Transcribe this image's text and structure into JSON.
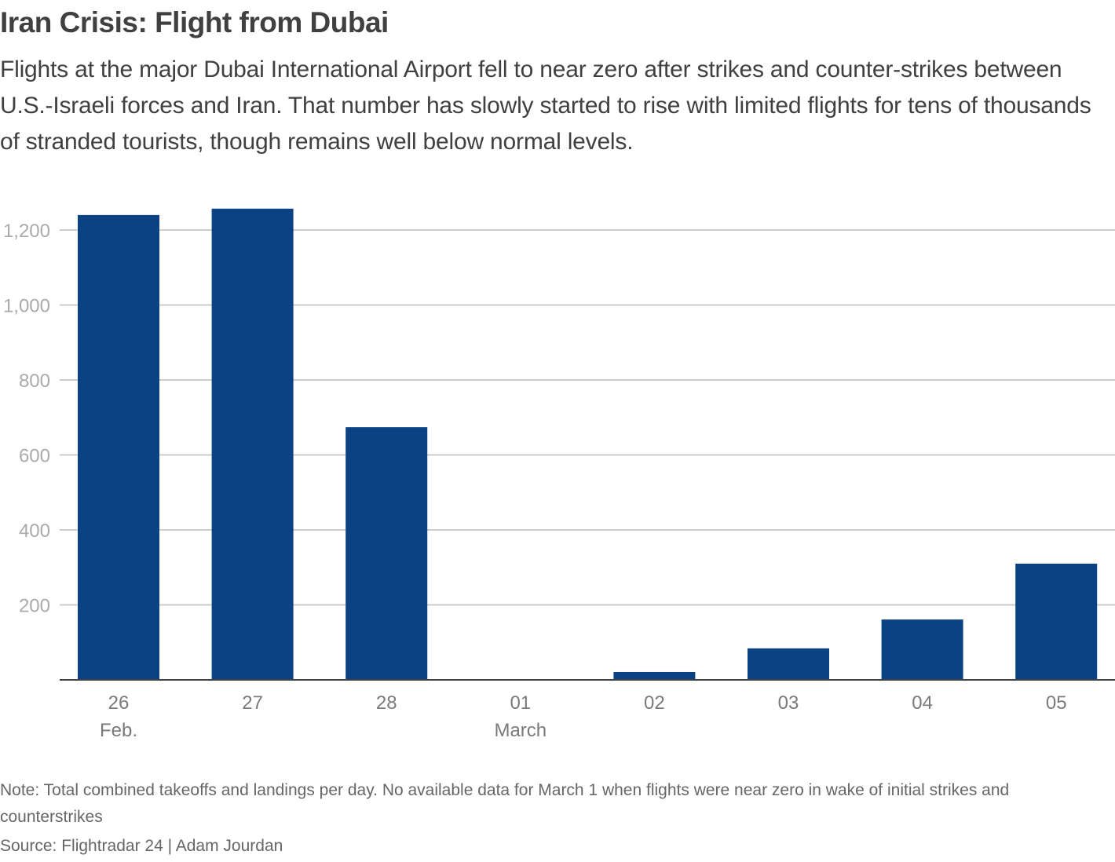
{
  "header": {
    "title": "Iran Crisis: Flight from Dubai",
    "subtitle": "Flights at the major Dubai International Airport fell to near zero after strikes and counter-strikes between U.S.-Israeli forces and Iran. That number has slowly started to rise with limited flights for tens of thousands of stranded tourists, though remains well below normal levels."
  },
  "footer": {
    "note": "Note: Total combined takeoffs and landings per day. No available data for March 1 when flights were near zero in wake of initial strikes and counterstrikes",
    "source": "Source: Flightradar 24 | Adam Jourdan"
  },
  "colors": {
    "bar": "#0b4284",
    "grid": "#cccccc",
    "axis": "#404040",
    "ytick": "#aaaaaa",
    "xtick": "#7a7a7a"
  },
  "chart_data": {
    "type": "bar",
    "title": "Iran Crisis: Flight from Dubai",
    "xlabel": "",
    "ylabel": "",
    "categories": [
      "26",
      "27",
      "28",
      "01",
      "02",
      "03",
      "04",
      "05"
    ],
    "category_sublabels": [
      "Feb.",
      "",
      "",
      "March",
      "",
      "",
      "",
      ""
    ],
    "values": [
      1240,
      1257,
      674,
      null,
      21,
      84,
      161,
      310
    ],
    "ylim": [
      0,
      1200
    ],
    "yticks": [
      200,
      400,
      600,
      800,
      1000,
      1200
    ],
    "ytick_labels": [
      "200",
      "400",
      "600",
      "800",
      "1,000",
      "1,200"
    ],
    "grid": true,
    "legend": "none"
  }
}
